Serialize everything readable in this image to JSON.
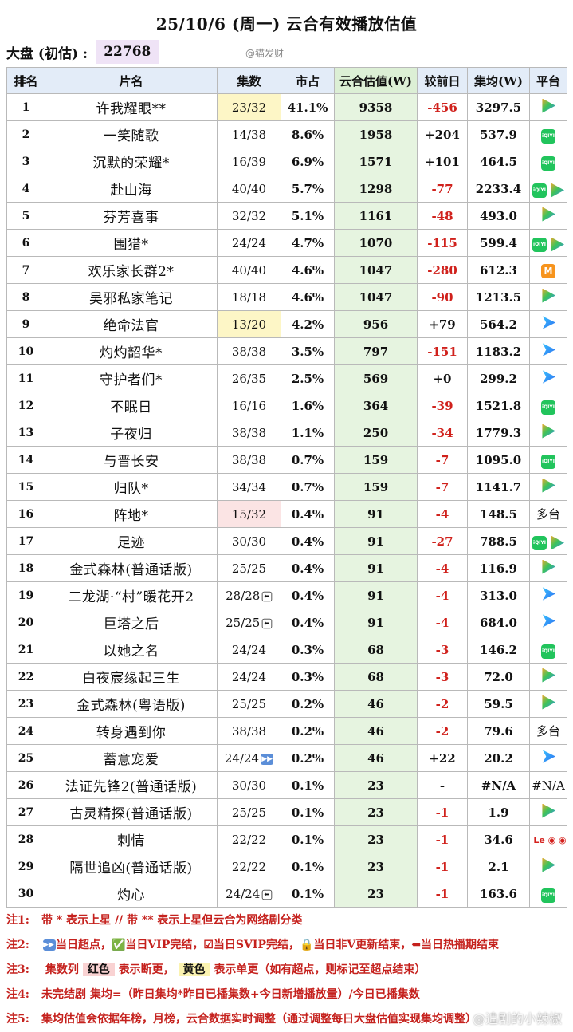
{
  "title": "25/10/6 (周一) 云合有效播放估值",
  "dapan": {
    "label": "大盘 (初估) :",
    "value": "22768"
  },
  "watermark_top": "@猫发财",
  "headers": [
    "排名",
    "片名",
    "集数",
    "市占",
    "云合估值(W)",
    "较前日",
    "集均(W)",
    "平台"
  ],
  "rows": [
    {
      "rank": "1",
      "name": "许我耀眼**",
      "eps": "23/32",
      "eps_hl": "yellow",
      "share": "41.1%",
      "est": "9358",
      "change": "-456",
      "avg": "3297.5",
      "platform": [
        "tencent"
      ]
    },
    {
      "rank": "2",
      "name": "一笑随歌",
      "eps": "14/38",
      "share": "8.6%",
      "est": "1958",
      "change": "+204",
      "avg": "537.9",
      "platform": [
        "iqiyi"
      ]
    },
    {
      "rank": "3",
      "name": "沉默的荣耀*",
      "eps": "16/39",
      "share": "6.9%",
      "est": "1571",
      "change": "+101",
      "avg": "464.5",
      "platform": [
        "iqiyi"
      ]
    },
    {
      "rank": "4",
      "name": "赴山海",
      "eps": "40/40",
      "share": "5.7%",
      "est": "1298",
      "change": "-77",
      "avg": "2233.4",
      "platform": [
        "iqiyi",
        "tencent"
      ]
    },
    {
      "rank": "5",
      "name": "芬芳喜事",
      "eps": "32/32",
      "share": "5.1%",
      "est": "1161",
      "change": "-48",
      "avg": "493.0",
      "platform": [
        "tencent"
      ]
    },
    {
      "rank": "6",
      "name": "围猎*",
      "eps": "24/24",
      "share": "4.7%",
      "est": "1070",
      "change": "-115",
      "avg": "599.4",
      "platform": [
        "iqiyi",
        "tencent"
      ]
    },
    {
      "rank": "7",
      "name": "欢乐家长群2*",
      "eps": "40/40",
      "share": "4.6%",
      "est": "1047",
      "change": "-280",
      "avg": "612.3",
      "platform": [
        "mango"
      ]
    },
    {
      "rank": "8",
      "name": "吴邪私家笔记",
      "eps": "18/18",
      "share": "4.6%",
      "est": "1047",
      "change": "-90",
      "avg": "1213.5",
      "platform": [
        "tencent"
      ]
    },
    {
      "rank": "9",
      "name": "绝命法官",
      "eps": "13/20",
      "eps_hl": "yellow",
      "share": "4.2%",
      "est": "956",
      "change": "+79",
      "avg": "564.2",
      "platform": [
        "youku"
      ]
    },
    {
      "rank": "10",
      "name": "灼灼韶华*",
      "eps": "38/38",
      "share": "3.5%",
      "est": "797",
      "change": "-151",
      "avg": "1183.2",
      "platform": [
        "youku"
      ]
    },
    {
      "rank": "11",
      "name": "守护者们*",
      "eps": "26/35",
      "share": "2.5%",
      "est": "569",
      "change": "+0",
      "avg": "299.2",
      "platform": [
        "youku"
      ]
    },
    {
      "rank": "12",
      "name": "不眠日",
      "eps": "16/16",
      "share": "1.6%",
      "est": "364",
      "change": "-39",
      "avg": "1521.8",
      "platform": [
        "iqiyi"
      ]
    },
    {
      "rank": "13",
      "name": "子夜归",
      "eps": "38/38",
      "share": "1.1%",
      "est": "250",
      "change": "-34",
      "avg": "1779.3",
      "platform": [
        "tencent"
      ]
    },
    {
      "rank": "14",
      "name": "与晋长安",
      "eps": "38/38",
      "share": "0.7%",
      "est": "159",
      "change": "-7",
      "avg": "1095.0",
      "platform": [
        "iqiyi"
      ]
    },
    {
      "rank": "15",
      "name": "归队*",
      "eps": "34/34",
      "share": "0.7%",
      "est": "159",
      "change": "-7",
      "avg": "1141.7",
      "platform": [
        "tencent"
      ]
    },
    {
      "rank": "16",
      "name": "阵地*",
      "eps": "15/32",
      "eps_hl": "red",
      "share": "0.4%",
      "est": "91",
      "change": "-4",
      "avg": "148.5",
      "platform_text": "多台"
    },
    {
      "rank": "17",
      "name": "足迹",
      "eps": "30/30",
      "share": "0.4%",
      "est": "91",
      "change": "-27",
      "avg": "788.5",
      "platform": [
        "iqiyi",
        "tencent"
      ]
    },
    {
      "rank": "18",
      "name": "金式森林(普通话版)",
      "eps": "25/25",
      "share": "0.4%",
      "est": "91",
      "change": "-4",
      "avg": "116.9",
      "platform": [
        "tencent"
      ]
    },
    {
      "rank": "19",
      "name": "二龙湖·“村”暖花开2",
      "eps": "28/28",
      "eps_tag": "END",
      "share": "0.4%",
      "est": "91",
      "change": "-4",
      "avg": "313.0",
      "platform": [
        "youku"
      ]
    },
    {
      "rank": "20",
      "name": "巨塔之后",
      "eps": "25/25",
      "eps_tag": "END",
      "share": "0.4%",
      "est": "91",
      "change": "-4",
      "avg": "684.0",
      "platform": [
        "youku"
      ]
    },
    {
      "rank": "21",
      "name": "以她之名",
      "eps": "24/24",
      "share": "0.3%",
      "est": "68",
      "change": "-3",
      "avg": "146.2",
      "platform": [
        "iqiyi"
      ]
    },
    {
      "rank": "22",
      "name": "白夜宸缘起三生",
      "eps": "24/24",
      "share": "0.3%",
      "est": "68",
      "change": "-3",
      "avg": "72.0",
      "platform": [
        "tencent"
      ]
    },
    {
      "rank": "23",
      "name": "金式森林(粤语版)",
      "eps": "25/25",
      "share": "0.2%",
      "est": "46",
      "change": "-2",
      "avg": "59.5",
      "platform": [
        "tencent"
      ]
    },
    {
      "rank": "24",
      "name": "转身遇到你",
      "eps": "38/38",
      "share": "0.2%",
      "est": "46",
      "change": "-2",
      "avg": "79.6",
      "platform_text": "多台"
    },
    {
      "rank": "25",
      "name": "蓄意宠爱",
      "eps": "24/24",
      "eps_tag": "FF",
      "share": "0.2%",
      "est": "46",
      "change": "+22",
      "avg": "20.2",
      "platform": [
        "youku"
      ]
    },
    {
      "rank": "26",
      "name": "法证先锋2(普通话版)",
      "eps": "30/30",
      "share": "0.1%",
      "est": "23",
      "change": "-",
      "avg": "#N/A",
      "platform_text": "#N/A"
    },
    {
      "rank": "27",
      "name": "古灵精探(普通话版)",
      "eps": "25/25",
      "share": "0.1%",
      "est": "23",
      "change": "-1",
      "avg": "1.9",
      "platform": [
        "tencent"
      ]
    },
    {
      "rank": "28",
      "name": "刺情",
      "eps": "22/22",
      "share": "0.1%",
      "est": "23",
      "change": "-1",
      "avg": "34.6",
      "platform": [
        "letv"
      ]
    },
    {
      "rank": "29",
      "name": "隔世追凶(普通话版)",
      "eps": "22/22",
      "share": "0.1%",
      "est": "23",
      "change": "-1",
      "avg": "2.1",
      "platform": [
        "tencent"
      ]
    },
    {
      "rank": "30",
      "name": "灼心",
      "eps": "24/24",
      "eps_tag": "END",
      "share": "0.1%",
      "est": "23",
      "change": "-1",
      "avg": "163.6",
      "platform": [
        "iqiyi"
      ]
    }
  ],
  "platform_icons": {
    "tencent": "tencent-video-icon",
    "iqiyi": "iqiyi-icon",
    "youku": "youku-icon",
    "mango": "mango-tv-icon",
    "letv": "letv-icon"
  },
  "notes": {
    "n1": {
      "label": "注1:",
      "text": "带 * 表示上星 // 带 ** 表示上星但云合为网络剧分类"
    },
    "n2": {
      "label": "注2:",
      "text": "当日超点，✅当日VIP完结，☑当日SVIP完结，🔒当日非V更新结束，⬅当日热播期结束"
    },
    "n3": {
      "label": "注3:",
      "a": "集数列",
      "b": "红色",
      "c": "表示断更，",
      "d": "黄色",
      "e": "表示单更（如有超点，则标记至超点结束）"
    },
    "n4": {
      "label": "注4:",
      "text": "未完结剧 集均=（昨日集均*昨日已播集数+今日新增播放量）/今日已播集数"
    },
    "n5": {
      "label": "注5:",
      "text": "集均估值会依据年榜，月榜，云合数据实时调整（通过调整每日大盘估值实现集均调整）"
    }
  },
  "watermark_bottom": "@追剧的小辣椒"
}
